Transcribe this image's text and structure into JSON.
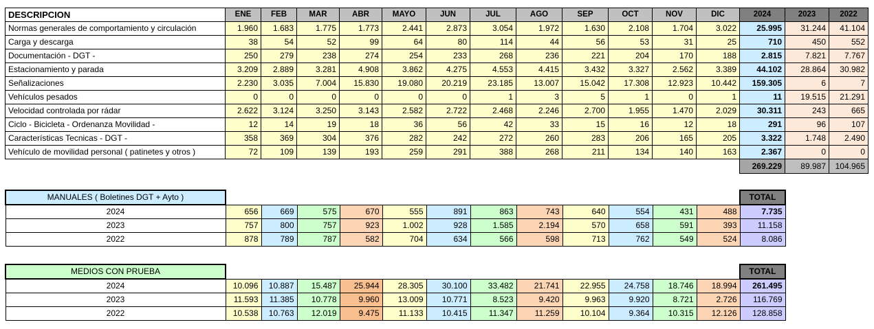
{
  "main_table": {
    "header": {
      "desc": "DESCRIPCION",
      "months": [
        "ENE",
        "FEB",
        "MAR",
        "ABR",
        "MAYO",
        "JUN",
        "JUL",
        "AGO",
        "SEP",
        "OCT",
        "NOV",
        "DIC"
      ],
      "years": [
        "2024",
        "2023",
        "2022"
      ]
    },
    "rows": [
      {
        "desc": "Normas generales de comportamiento y circulación",
        "m": [
          "1.960",
          "1.683",
          "1.775",
          "1.773",
          "2.441",
          "2.873",
          "3.054",
          "1.972",
          "1.630",
          "2.108",
          "1.704",
          "3.022"
        ],
        "y": [
          "25.995",
          "31.244",
          "41.104"
        ]
      },
      {
        "desc": "Carga y descarga",
        "m": [
          "38",
          "54",
          "52",
          "99",
          "64",
          "80",
          "114",
          "44",
          "56",
          "53",
          "31",
          "25"
        ],
        "y": [
          "710",
          "450",
          "552"
        ]
      },
      {
        "desc": "Documentación   - DGT -",
        "m": [
          "250",
          "279",
          "238",
          "274",
          "254",
          "233",
          "268",
          "236",
          "221",
          "204",
          "170",
          "188"
        ],
        "y": [
          "2.815",
          "7.821",
          "7.767"
        ]
      },
      {
        "desc": "Estacionamiento y parada",
        "m": [
          "3.209",
          "2.889",
          "3.281",
          "4.908",
          "3.862",
          "4.275",
          "4.553",
          "4.415",
          "3.432",
          "3.327",
          "2.562",
          "3.389"
        ],
        "y": [
          "44.102",
          "28.864",
          "30.982"
        ]
      },
      {
        "desc": "Señalizaciones",
        "m": [
          "2.230",
          "3.035",
          "7.004",
          "15.830",
          "19.080",
          "20.219",
          "23.185",
          "13.007",
          "15.042",
          "17.308",
          "12.923",
          "10.442"
        ],
        "y": [
          "159.305",
          "6",
          "7"
        ]
      },
      {
        "desc": "Vehículos pesados",
        "m": [
          "0",
          "0",
          "0",
          "0",
          "0",
          "0",
          "1",
          "3",
          "5",
          "1",
          "0",
          "1"
        ],
        "y": [
          "11",
          "19.515",
          "21.291"
        ]
      },
      {
        "desc": "Velocidad controlada por rádar",
        "m": [
          "2.622",
          "3.124",
          "3.250",
          "3.143",
          "2.582",
          "2.722",
          "2.468",
          "2.246",
          "2.700",
          "1.955",
          "1.470",
          "2.029"
        ],
        "y": [
          "30.311",
          "243",
          "665"
        ]
      },
      {
        "desc": "Ciclo - Bicicleta - Ordenanza Movilidad -",
        "m": [
          "12",
          "14",
          "19",
          "18",
          "36",
          "56",
          "42",
          "33",
          "15",
          "16",
          "12",
          "18"
        ],
        "y": [
          "291",
          "96",
          "107"
        ]
      },
      {
        "desc": "Características Tecnicas    - DGT -",
        "m": [
          "358",
          "369",
          "304",
          "376",
          "282",
          "242",
          "272",
          "260",
          "283",
          "206",
          "165",
          "205"
        ],
        "y": [
          "3.322",
          "1.748",
          "2.490"
        ]
      },
      {
        "desc": "Vehículo de movilidad personal ( patinetes y otros )",
        "m": [
          "72",
          "109",
          "139",
          "193",
          "259",
          "291",
          "388",
          "268",
          "211",
          "134",
          "140",
          "163"
        ],
        "y": [
          "2.367",
          "0",
          "0"
        ]
      }
    ],
    "totals": [
      "269.229",
      "89.987",
      "104.965"
    ]
  },
  "manuales": {
    "title": "MANUALES  ( Boletines DGT + Ayto )",
    "total_label": "TOTAL",
    "rows": [
      {
        "year": "2024",
        "m": [
          "656",
          "669",
          "575",
          "670",
          "555",
          "891",
          "863",
          "743",
          "640",
          "554",
          "431",
          "488"
        ],
        "total": "7.735"
      },
      {
        "year": "2023",
        "m": [
          "757",
          "800",
          "757",
          "923",
          "1.002",
          "928",
          "1.585",
          "2.194",
          "570",
          "658",
          "591",
          "393"
        ],
        "total": "11.158"
      },
      {
        "year": "2022",
        "m": [
          "878",
          "789",
          "787",
          "582",
          "704",
          "634",
          "566",
          "598",
          "713",
          "762",
          "549",
          "524"
        ],
        "total": "8.086"
      }
    ]
  },
  "medios": {
    "title": "MEDIOS  CON  PRUEBA",
    "total_label": "TOTAL",
    "rows": [
      {
        "year": "2024",
        "m": [
          "10.096",
          "10.887",
          "15.487",
          "25.944",
          "28.305",
          "30.100",
          "33.482",
          "21.741",
          "22.955",
          "24.758",
          "18.746",
          "18.994"
        ],
        "total": "261.495"
      },
      {
        "year": "2023",
        "m": [
          "11.593",
          "11.385",
          "10.778",
          "9.960",
          "13.009",
          "10.771",
          "8.523",
          "9.420",
          "9.963",
          "9.920",
          "8.721",
          "2.726"
        ],
        "total": "116.769"
      },
      {
        "year": "2022",
        "m": [
          "10.538",
          "10.763",
          "12.019",
          "9.475",
          "11.133",
          "10.415",
          "11.347",
          "11.259",
          "10.104",
          "9.364",
          "10.315",
          "12.126"
        ],
        "total": "128.858"
      }
    ]
  }
}
